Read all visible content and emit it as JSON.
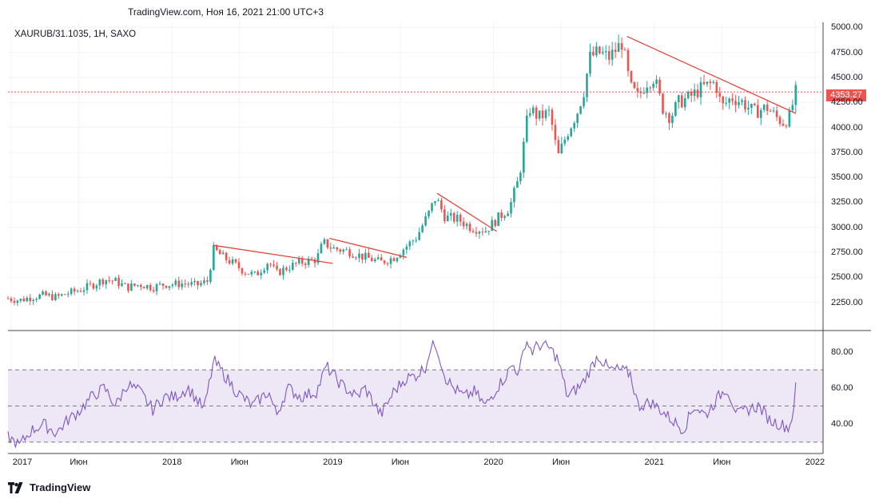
{
  "header": {
    "title": "TradingView.com, Ноя 16, 2021 21:00 UTC+3"
  },
  "symbol": {
    "label": "XAURUB/31.1035, 1H, SAXO"
  },
  "last_price": {
    "label": "4353.27",
    "value": 4353.27
  },
  "logo": {
    "text": "TradingView",
    "icon": "tradingview-logo-icon"
  },
  "colors": {
    "up": "#26a69a",
    "down": "#ef5350",
    "rsi_line": "#7e57c2",
    "rsi_band": "#ede7f6",
    "trend": "#e0463c"
  },
  "chart_data": [
    {
      "type": "candlestick",
      "ylim": [
        2000,
        5050
      ],
      "yticks": [
        "5000.00",
        "4750.00",
        "4500.00",
        "4250.00",
        "4000.00",
        "3750.00",
        "3500.00",
        "3250.00",
        "3000.00",
        "2750.00",
        "2500.00",
        "2250.00"
      ],
      "yticks_values": [
        5000,
        4750,
        4500,
        4250,
        4000,
        3750,
        3500,
        3250,
        3000,
        2750,
        2500,
        2250
      ],
      "xticks": [
        "2017",
        "Июн",
        "2018",
        "Июн",
        "2019",
        "Июн",
        "2020",
        "Июн",
        "2021",
        "Июн",
        "2022"
      ],
      "xticks_values": [
        2017.0,
        2017.42,
        2018.0,
        2018.42,
        2019.0,
        2019.42,
        2020.0,
        2020.42,
        2021.0,
        2021.42,
        2022.0
      ],
      "close_series": [
        [
          2016.98,
          2290
        ],
        [
          2017.05,
          2270
        ],
        [
          2017.12,
          2300
        ],
        [
          2017.2,
          2320
        ],
        [
          2017.28,
          2300
        ],
        [
          2017.35,
          2340
        ],
        [
          2017.42,
          2370
        ],
        [
          2017.5,
          2420
        ],
        [
          2017.58,
          2480
        ],
        [
          2017.65,
          2460
        ],
        [
          2017.72,
          2400
        ],
        [
          2017.8,
          2430
        ],
        [
          2017.88,
          2400
        ],
        [
          2017.95,
          2430
        ],
        [
          2018.0,
          2430
        ],
        [
          2018.08,
          2440
        ],
        [
          2018.15,
          2420
        ],
        [
          2018.22,
          2460
        ],
        [
          2018.26,
          2780
        ],
        [
          2018.32,
          2700
        ],
        [
          2018.38,
          2640
        ],
        [
          2018.45,
          2560
        ],
        [
          2018.52,
          2520
        ],
        [
          2018.6,
          2660
        ],
        [
          2018.65,
          2540
        ],
        [
          2018.72,
          2600
        ],
        [
          2018.8,
          2650
        ],
        [
          2018.9,
          2680
        ],
        [
          2018.94,
          2850
        ],
        [
          2019.0,
          2790
        ],
        [
          2019.1,
          2760
        ],
        [
          2019.2,
          2700
        ],
        [
          2019.3,
          2650
        ],
        [
          2019.38,
          2700
        ],
        [
          2019.45,
          2800
        ],
        [
          2019.52,
          2900
        ],
        [
          2019.6,
          3150
        ],
        [
          2019.64,
          3300
        ],
        [
          2019.7,
          3100
        ],
        [
          2019.78,
          3080
        ],
        [
          2019.86,
          3000
        ],
        [
          2019.95,
          2970
        ],
        [
          2020.02,
          3080
        ],
        [
          2020.1,
          3200
        ],
        [
          2020.16,
          3500
        ],
        [
          2020.22,
          4200
        ],
        [
          2020.28,
          4100
        ],
        [
          2020.35,
          4150
        ],
        [
          2020.4,
          3700
        ],
        [
          2020.46,
          3950
        ],
        [
          2020.52,
          4150
        ],
        [
          2020.56,
          4350
        ],
        [
          2020.6,
          4700
        ],
        [
          2020.65,
          4750
        ],
        [
          2020.72,
          4700
        ],
        [
          2020.8,
          4850
        ],
        [
          2020.85,
          4400
        ],
        [
          2020.9,
          4300
        ],
        [
          2020.95,
          4450
        ],
        [
          2021.0,
          4500
        ],
        [
          2021.05,
          4200
        ],
        [
          2021.1,
          4100
        ],
        [
          2021.15,
          4250
        ],
        [
          2021.22,
          4300
        ],
        [
          2021.3,
          4400
        ],
        [
          2021.38,
          4450
        ],
        [
          2021.42,
          4200
        ],
        [
          2021.48,
          4300
        ],
        [
          2021.55,
          4250
        ],
        [
          2021.62,
          4150
        ],
        [
          2021.7,
          4200
        ],
        [
          2021.76,
          4100
        ],
        [
          2021.8,
          4050
        ],
        [
          2021.84,
          4100
        ],
        [
          2021.88,
          4350
        ]
      ],
      "trendlines": [
        [
          [
            2018.26,
            2820
          ],
          [
            2019.0,
            2640
          ]
        ],
        [
          [
            2018.98,
            2890
          ],
          [
            2019.46,
            2700
          ]
        ],
        [
          [
            2019.65,
            3340
          ],
          [
            2020.02,
            2960
          ]
        ],
        [
          [
            2020.83,
            4910
          ],
          [
            2021.88,
            4140
          ]
        ]
      ],
      "last_price": 4353.27
    },
    {
      "type": "line",
      "ylim": [
        25,
        90
      ],
      "yticks": [
        "80.00",
        "60.00",
        "40.00"
      ],
      "yticks_values": [
        80,
        60,
        40
      ],
      "bands": [
        30,
        50,
        70
      ],
      "x": [
        2016.98,
        2017.05,
        2017.12,
        2017.2,
        2017.28,
        2017.35,
        2017.42,
        2017.5,
        2017.58,
        2017.65,
        2017.72,
        2017.8,
        2017.88,
        2017.95,
        2018.02,
        2018.1,
        2018.2,
        2018.26,
        2018.32,
        2018.4,
        2018.5,
        2018.6,
        2018.65,
        2018.72,
        2018.8,
        2018.9,
        2018.96,
        2019.05,
        2019.15,
        2019.2,
        2019.3,
        2019.38,
        2019.45,
        2019.52,
        2019.58,
        2019.6,
        2019.64,
        2019.7,
        2019.75,
        2019.82,
        2019.88,
        2019.95,
        2020.02,
        2020.08,
        2020.12,
        2020.16,
        2020.2,
        2020.24,
        2020.28,
        2020.35,
        2020.4,
        2020.46,
        2020.55,
        2020.6,
        2020.65,
        2020.72,
        2020.78,
        2020.85,
        2020.9,
        2020.98,
        2021.05,
        2021.1,
        2021.18,
        2021.25,
        2021.32,
        2021.4,
        2021.45,
        2021.52,
        2021.58,
        2021.65,
        2021.72,
        2021.78,
        2021.84,
        2021.86,
        2021.88
      ],
      "values": [
        33,
        28,
        36,
        40,
        35,
        42,
        47,
        55,
        60,
        50,
        62,
        58,
        48,
        55,
        55,
        60,
        48,
        75,
        68,
        58,
        50,
        58,
        45,
        60,
        55,
        58,
        72,
        62,
        55,
        60,
        45,
        58,
        65,
        67,
        72,
        80,
        85,
        66,
        60,
        55,
        58,
        50,
        60,
        67,
        73,
        68,
        87,
        80,
        84,
        82,
        76,
        55,
        62,
        70,
        78,
        70,
        70,
        68,
        50,
        52,
        47,
        43,
        37,
        50,
        45,
        55,
        60,
        45,
        48,
        50,
        42,
        40,
        38,
        45,
        60
      ]
    }
  ]
}
